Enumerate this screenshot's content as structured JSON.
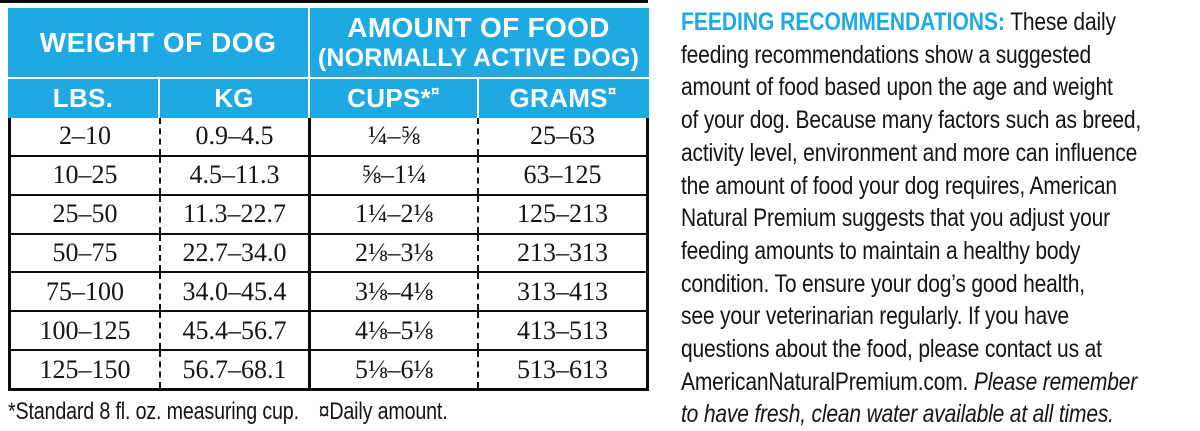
{
  "brand_color": "#1fa9e2",
  "table": {
    "group_headers": {
      "weight": "WEIGHT OF DOG",
      "amount_line1": "AMOUNT OF FOOD",
      "amount_line2": "(NORMALLY ACTIVE DOG)"
    },
    "columns": [
      {
        "key": "lbs",
        "label": "LBS.",
        "sup": ""
      },
      {
        "key": "kg",
        "label": "KG",
        "sup": ""
      },
      {
        "key": "cups",
        "label": "CUPS*",
        "sup": "¤"
      },
      {
        "key": "grams",
        "label": "GRAMS",
        "sup": "¤"
      }
    ],
    "rows": [
      [
        "2–10",
        "0.9–4.5",
        "¼–⅝",
        "25–63"
      ],
      [
        "10–25",
        "4.5–11.3",
        "⅝–1¼",
        "63–125"
      ],
      [
        "25–50",
        "11.3–22.7",
        "1¼–2⅛",
        "125–213"
      ],
      [
        "50–75",
        "22.7–34.0",
        "2⅛–3⅛",
        "213–313"
      ],
      [
        "75–100",
        "34.0–45.4",
        "3⅛–4⅛",
        "313–413"
      ],
      [
        "100–125",
        "45.4–56.7",
        "4⅛–5⅛",
        "413–513"
      ],
      [
        "125–150",
        "56.7–68.1",
        "5⅛–6⅛",
        "513–613"
      ]
    ],
    "footnote_cup": "*Standard 8 fl. oz. measuring cup.",
    "footnote_daily": "¤Daily amount."
  },
  "info": {
    "lines": [
      {
        "parts": [
          {
            "t": "FEEDING RECOMMENDATIONS:",
            "s": "heading"
          },
          {
            "t": " These daily",
            "s": "n"
          }
        ]
      },
      {
        "parts": [
          {
            "t": "feeding recommendations show a suggested",
            "s": "n"
          }
        ]
      },
      {
        "parts": [
          {
            "t": "amount of food based upon the age and weight",
            "s": "n"
          }
        ]
      },
      {
        "parts": [
          {
            "t": "of your dog. Because many factors such as breed,",
            "s": "n"
          }
        ]
      },
      {
        "parts": [
          {
            "t": "activity level, environment and more can influence",
            "s": "n"
          }
        ]
      },
      {
        "parts": [
          {
            "t": "the amount of food your dog requires, American",
            "s": "n"
          }
        ]
      },
      {
        "parts": [
          {
            "t": "Natural Premium suggests that you adjust your",
            "s": "n"
          }
        ]
      },
      {
        "parts": [
          {
            "t": "feeding amounts to maintain a healthy body",
            "s": "n"
          }
        ]
      },
      {
        "parts": [
          {
            "t": "condition. To ensure your dog’s good health,",
            "s": "n"
          }
        ]
      },
      {
        "parts": [
          {
            "t": "see your veterinarian regularly. If you have",
            "s": "n"
          }
        ]
      },
      {
        "parts": [
          {
            "t": "questions about the food, please contact us at",
            "s": "n"
          }
        ]
      },
      {
        "parts": [
          {
            "t": "AmericanNaturalPremium.com. ",
            "s": "n"
          },
          {
            "t": "Please remember",
            "s": "italic"
          }
        ]
      },
      {
        "parts": [
          {
            "t": "to have fresh, clean water available at all times.",
            "s": "italic"
          }
        ]
      }
    ]
  }
}
